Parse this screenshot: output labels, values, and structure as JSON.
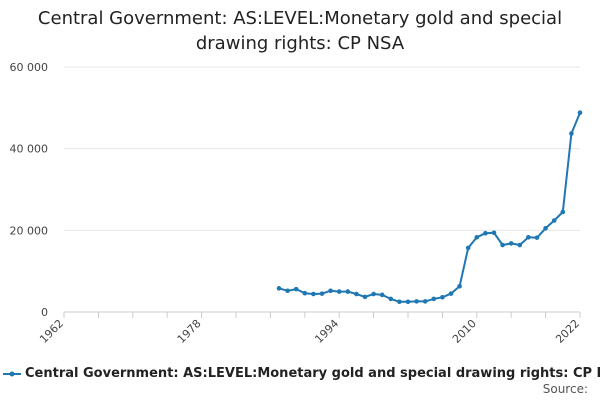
{
  "chart_data": {
    "type": "line",
    "title": "Central Government: AS:LEVEL:Monetary gold and special drawing rights: CP NSA",
    "xlabel": "",
    "ylabel": "",
    "xlim": [
      1962,
      2022
    ],
    "ylim": [
      0,
      60000
    ],
    "x_ticks": [
      "1962",
      "1978",
      "1994",
      "2010",
      "2022"
    ],
    "y_ticks": [
      "0",
      "20 000",
      "40 000",
      "60 000"
    ],
    "grid": true,
    "legend_position": "bottom",
    "series": [
      {
        "name": "Central Government: AS:LEVEL:Monetary gold and special drawing rights: CP NSA",
        "color": "#1f77b4",
        "x": [
          1987,
          1988,
          1989,
          1990,
          1991,
          1992,
          1993,
          1994,
          1995,
          1996,
          1997,
          1998,
          1999,
          2000,
          2001,
          2002,
          2003,
          2004,
          2005,
          2006,
          2007,
          2008,
          2009,
          2010,
          2011,
          2012,
          2013,
          2014,
          2015,
          2016,
          2017,
          2018,
          2019,
          2020,
          2021,
          2022
        ],
        "values": [
          5800,
          5200,
          5600,
          4600,
          4400,
          4500,
          5200,
          5000,
          5000,
          4400,
          3700,
          4400,
          4200,
          3200,
          2500,
          2500,
          2600,
          2600,
          3200,
          3600,
          4500,
          6300,
          15700,
          18300,
          19300,
          19400,
          16400,
          16800,
          16400,
          18300,
          18200,
          20500,
          22400,
          24500,
          43700,
          48800
        ]
      }
    ]
  },
  "legend": {
    "label": "Central Government: AS:LEVEL:Monetary gold and special drawing rights: CP NSA"
  },
  "footer": {
    "source_label": "Source:"
  }
}
